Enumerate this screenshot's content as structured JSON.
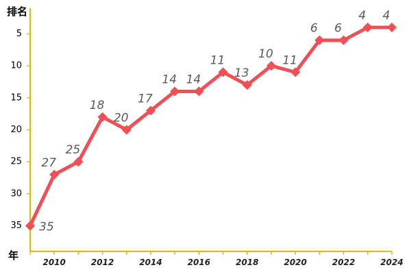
{
  "chart_data": {
    "type": "line",
    "title": "",
    "xlabel": "年",
    "ylabel": "排名",
    "y_inverted": true,
    "ylim": [
      1,
      39
    ],
    "xlim": [
      2009,
      2024
    ],
    "yticks": [
      "5",
      "10",
      "15",
      "20",
      "25",
      "30",
      "35"
    ],
    "xticks": [
      "2010",
      "2012",
      "2014",
      "2016",
      "2018",
      "2020",
      "2022",
      "2024"
    ],
    "grid": false,
    "legend": "none",
    "colors": {
      "line": "#f04f55",
      "axis": "#f0b400",
      "label": "#595959"
    },
    "series": [
      {
        "x": [
          2009,
          2010,
          2011,
          2012,
          2013,
          2014,
          2015,
          2016,
          2017,
          2018,
          2019,
          2020,
          2021,
          2022,
          2023,
          2024
        ],
        "values": [
          35,
          27,
          25,
          18,
          20,
          17,
          14,
          14,
          11,
          13,
          10,
          11,
          6,
          6,
          4,
          4
        ],
        "labels": [
          "35",
          "27",
          "25",
          "18",
          "20",
          "17",
          "14",
          "14",
          "11",
          "13",
          "10",
          "11",
          "6",
          "6",
          "4",
          "4"
        ]
      }
    ]
  }
}
